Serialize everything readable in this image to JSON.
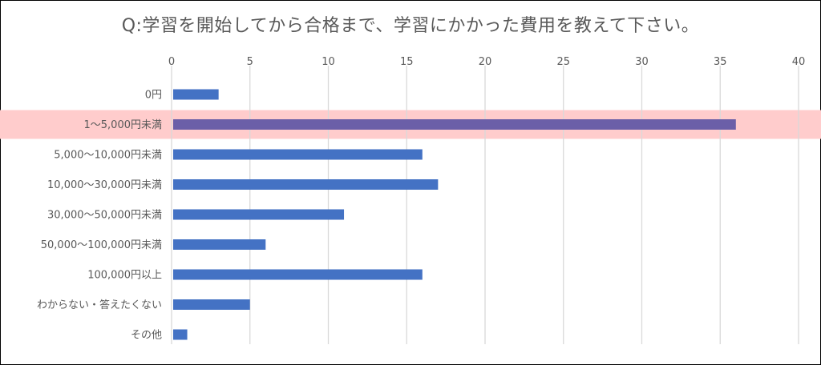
{
  "chart_data": {
    "type": "bar",
    "orientation": "horizontal",
    "title": "Q:学習を開始してから合格まで、学習にかかった費用を教えて下さい。",
    "categories": [
      "0円",
      "1～5,000円未満",
      "5,000～10,000円未満",
      "10,000～30,000円未満",
      "30,000～50,000円未満",
      "50,000～100,000円未満",
      "100,000円以上",
      "わからない・答えたくない",
      "その他"
    ],
    "values": [
      3,
      36,
      16,
      17,
      11,
      6,
      16,
      5,
      1
    ],
    "xlim": [
      0,
      40
    ],
    "xticks": [
      0,
      5,
      10,
      15,
      20,
      25,
      30,
      35,
      40
    ],
    "x_axis_position": "top",
    "grid": true,
    "legend": "none",
    "highlight_index": 1
  },
  "colors": {
    "bar": "#4472C4",
    "highlight_bar": "#6B5FA8",
    "highlight_band": "#FFCCCC",
    "grid": "#D9D9D9",
    "text": "#595959"
  }
}
